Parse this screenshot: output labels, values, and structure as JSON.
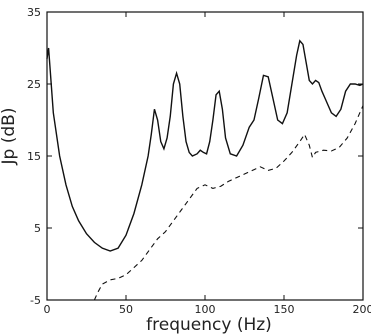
{
  "chart_data": {
    "type": "line",
    "xlabel": "frequency  (Hz)",
    "ylabel": "Jp  (dB)",
    "xlim": [
      0,
      200
    ],
    "ylim": [
      -5,
      35
    ],
    "xticks": [
      0,
      50,
      100,
      150,
      200
    ],
    "yticks": [
      -5,
      5,
      15,
      25,
      35
    ],
    "grid": false,
    "series": [
      {
        "style": "solid",
        "x": [
          0,
          1,
          2,
          4,
          8,
          12,
          16,
          20,
          25,
          30,
          35,
          40,
          45,
          50,
          55,
          60,
          64,
          66,
          68,
          70,
          72,
          74,
          76,
          78,
          80,
          82,
          84,
          86,
          88,
          90,
          92,
          95,
          97,
          99,
          101,
          103,
          105,
          107,
          109,
          111,
          113,
          116,
          120,
          124,
          128,
          131,
          134,
          137,
          140,
          143,
          146,
          149,
          152,
          155,
          158,
          160,
          162,
          164,
          166,
          168,
          170,
          172,
          174,
          176,
          178,
          180,
          183,
          186,
          189,
          192,
          195,
          198,
          200
        ],
        "y": [
          28.5,
          30,
          27,
          21,
          15,
          11,
          8,
          6,
          4.2,
          3,
          2.2,
          1.8,
          2.2,
          4,
          7,
          11,
          15,
          18,
          21.5,
          20,
          17,
          16,
          17.5,
          20.5,
          25,
          26.5,
          25,
          20.5,
          17,
          15.5,
          15,
          15.3,
          15.8,
          15.5,
          15.3,
          17,
          20,
          23.5,
          24,
          21.5,
          17.5,
          15.3,
          15,
          16.5,
          19,
          20,
          23,
          26.2,
          26,
          23,
          20,
          19.5,
          21,
          25,
          29,
          31,
          30.5,
          28,
          25.5,
          25,
          25.5,
          25.2,
          24,
          23,
          22,
          21,
          20.5,
          21.5,
          24,
          25,
          25,
          24.8,
          25
        ]
      },
      {
        "style": "dashed",
        "x": [
          30,
          32,
          35,
          40,
          45,
          50,
          55,
          60,
          65,
          70,
          75,
          80,
          85,
          90,
          95,
          100,
          105,
          110,
          115,
          120,
          125,
          130,
          135,
          140,
          145,
          150,
          155,
          160,
          163,
          166,
          168,
          170,
          175,
          180,
          185,
          190,
          195,
          200
        ],
        "y": [
          -5,
          -4,
          -2.8,
          -2.2,
          -2,
          -1.5,
          -0.5,
          0.5,
          2,
          3.5,
          4.5,
          6,
          7.5,
          9,
          10.5,
          11,
          10.5,
          10.8,
          11.5,
          12,
          12.5,
          13,
          13.5,
          13,
          13.3,
          14.3,
          15.5,
          17,
          18,
          16.5,
          14.8,
          15.5,
          15.8,
          15.7,
          16.2,
          17.5,
          19.5,
          22
        ]
      }
    ]
  }
}
